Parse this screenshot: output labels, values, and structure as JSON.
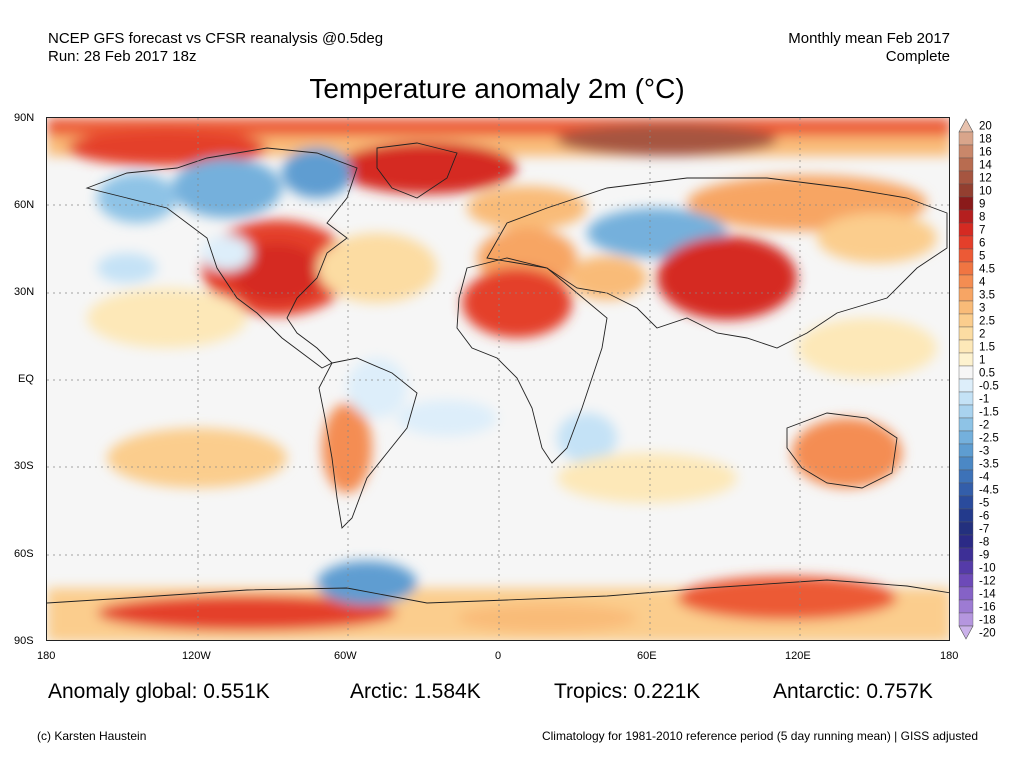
{
  "header": {
    "line1_left": "NCEP GFS forecast vs CFSR reanalysis @0.5deg",
    "line2_left": "Run: 28 Feb 2017 18z",
    "line1_right": "Monthly mean Feb 2017",
    "line2_right": "Complete"
  },
  "title": "Temperature anomaly 2m (°C)",
  "axes": {
    "lat_labels": [
      "90N",
      "60N",
      "30N",
      "EQ",
      "30S",
      "60S",
      "90S"
    ],
    "lon_labels": [
      "180",
      "120W",
      "60W",
      "0",
      "60E",
      "120E",
      "180"
    ]
  },
  "stats": {
    "global": "Anomaly global: 0.551K",
    "arctic": "Arctic: 1.584K",
    "tropics": "Tropics: 0.221K",
    "antarctic": "Antarctic: 0.757K"
  },
  "footer": {
    "credit": "(c) Karsten Haustein",
    "note": "Climatology for 1981-2010 reference period (5 day running mean) | GISS adjusted"
  },
  "colorbar": {
    "labels": [
      "20",
      "18",
      "16",
      "14",
      "12",
      "10",
      "9",
      "8",
      "7",
      "6",
      "5",
      "4.5",
      "4",
      "3.5",
      "3",
      "2.5",
      "2",
      "1.5",
      "1",
      "0.5",
      "-0.5",
      "-1",
      "-1.5",
      "-2",
      "-2.5",
      "-3",
      "-3.5",
      "-4",
      "-4.5",
      "-5",
      "-6",
      "-7",
      "-8",
      "-9",
      "-10",
      "-12",
      "-14",
      "-16",
      "-18",
      "-20"
    ],
    "colors": [
      "#e8c2ae",
      "#d9a58b",
      "#c9876a",
      "#b86c50",
      "#a65540",
      "#933f30",
      "#8a1a1a",
      "#b51f1f",
      "#d52a22",
      "#e43f2b",
      "#ec5a36",
      "#f07542",
      "#f48d52",
      "#f7a564",
      "#f9bb78",
      "#fbcd8d",
      "#fcdca2",
      "#fde8b8",
      "#fdf2cf",
      "#f6f6f6",
      "#ddeefa",
      "#c4e2f6",
      "#a9d3ef",
      "#8ec3e6",
      "#74b0dc",
      "#5e9dd1",
      "#4b88c5",
      "#3d72b8",
      "#335eaa",
      "#2a4b9c",
      "#233a8c",
      "#23307e",
      "#2b2a86",
      "#3d2f96",
      "#553ba8",
      "#6d4ab8",
      "#8562c6",
      "#9d7bd3",
      "#b596df",
      "#cbb2ea"
    ]
  }
}
